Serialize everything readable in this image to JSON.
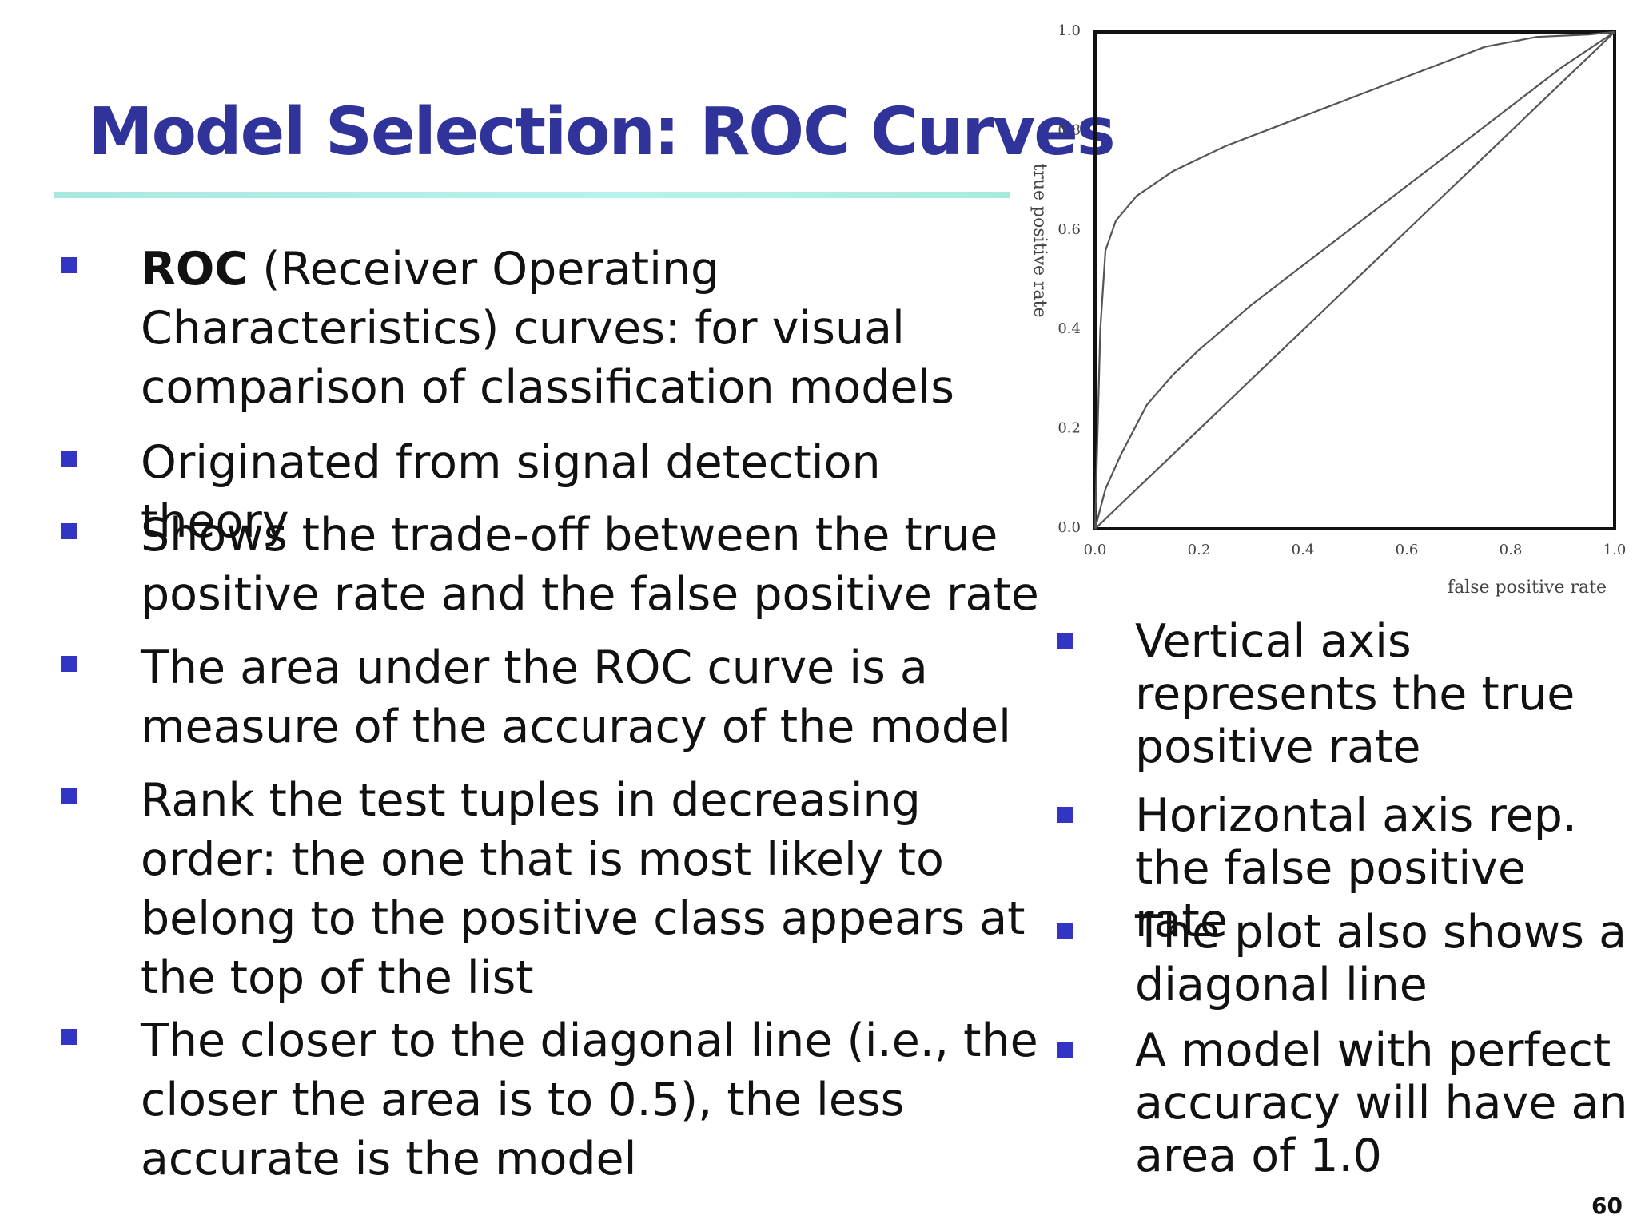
{
  "title": "Model Selection: ROC Curves",
  "left_bullets": [
    {
      "bold": "ROC",
      "text": " (Receiver Operating\nCharacteristics) curves: for visual\ncomparison of classification models"
    },
    {
      "bold": "",
      "text": "Originated from signal detection theory"
    },
    {
      "bold": "",
      "text": "Shows the trade-off between the true\npositive rate and the false positive rate"
    },
    {
      "bold": "",
      "text": "The area under the ROC curve is a\nmeasure of the accuracy of the model"
    },
    {
      "bold": "",
      "text": "Rank the test tuples in decreasing\norder: the one that is most likely to\nbelong to the positive class appears at\nthe top of the list"
    },
    {
      "bold": "",
      "text": "The closer to the diagonal line (i.e., the\ncloser the area is to 0.5), the less\naccurate is the model"
    }
  ],
  "right_bullets": [
    {
      "text": "Vertical axis\nrepresents the true\npositive rate"
    },
    {
      "text": "Horizontal axis rep.\nthe false positive rate"
    },
    {
      "text": "The plot also shows a\ndiagonal line"
    },
    {
      "text": "A model with perfect\naccuracy will have an\narea of 1.0"
    }
  ],
  "page_number": "60",
  "colors": {
    "title": "#303399",
    "bullet": "#3333c4",
    "rule": "#b4efe6"
  },
  "chart_data": {
    "type": "line",
    "xlabel": "false positive rate",
    "ylabel": "true positive rate",
    "xlim": [
      0,
      1
    ],
    "ylim": [
      0,
      1
    ],
    "xticks": [
      "0.0",
      "0.2",
      "0.4",
      "0.6",
      "0.8",
      "1.0"
    ],
    "yticks": [
      "0.0",
      "0.2",
      "0.4",
      "0.6",
      "0.8",
      "1.0"
    ],
    "grid": false,
    "series": [
      {
        "x": [
          0,
          0.01,
          0.02,
          0.04,
          0.08,
          0.15,
          0.25,
          0.35,
          0.45,
          0.55,
          0.65,
          0.75,
          0.85,
          0.95,
          1.0
        ],
        "y": [
          0,
          0.4,
          0.56,
          0.62,
          0.67,
          0.72,
          0.77,
          0.81,
          0.85,
          0.89,
          0.93,
          0.97,
          0.99,
          0.995,
          1.0
        ]
      },
      {
        "x": [
          0,
          0.02,
          0.05,
          0.1,
          0.15,
          0.2,
          0.3,
          0.4,
          0.5,
          0.6,
          0.7,
          0.8,
          0.9,
          1.0
        ],
        "y": [
          0,
          0.08,
          0.15,
          0.25,
          0.31,
          0.36,
          0.45,
          0.53,
          0.61,
          0.69,
          0.77,
          0.85,
          0.93,
          1.0
        ]
      },
      {
        "x": [
          0,
          1
        ],
        "y": [
          0,
          1
        ]
      }
    ]
  }
}
